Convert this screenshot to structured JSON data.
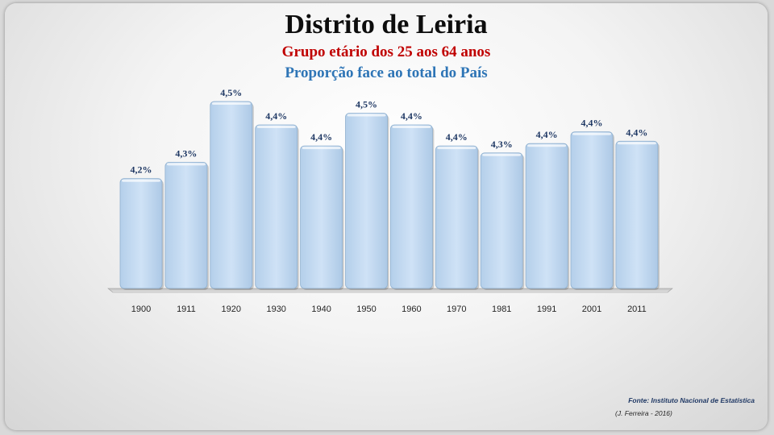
{
  "title": "Distrito de Leiria",
  "subtitle": "Grupo etário dos 25 aos 64 anos",
  "subtitle2": "Proporção face ao total do País",
  "source": "Fonte: Instituto Nacional de Estatística",
  "credit": "(J. Ferreira - 2016)",
  "colors": {
    "bar": "#c5dcf2",
    "bar_edge": "#8fb0cf",
    "title2": "#c00000",
    "title3": "#2e75b6",
    "labels": "#1f3864"
  },
  "chart_data": {
    "type": "bar",
    "categories": [
      "1900",
      "1911",
      "1920",
      "1930",
      "1940",
      "1950",
      "1960",
      "1970",
      "1981",
      "1991",
      "2001",
      "2011"
    ],
    "values": [
      4.2,
      4.3,
      4.5,
      4.4,
      4.4,
      4.5,
      4.4,
      4.4,
      4.3,
      4.4,
      4.4,
      4.4
    ],
    "heights": [
      4.22,
      4.29,
      4.55,
      4.45,
      4.36,
      4.5,
      4.45,
      4.36,
      4.33,
      4.37,
      4.42,
      4.38
    ],
    "data_labels": [
      "4,2%",
      "4,3%",
      "4,5%",
      "4,4%",
      "4,4%",
      "4,5%",
      "4,4%",
      "4,4%",
      "4,3%",
      "4,4%",
      "4,4%",
      "4,4%"
    ],
    "title": "Distrito de Leiria",
    "xlabel": "",
    "ylabel": "",
    "grid": false,
    "legend": "none"
  }
}
